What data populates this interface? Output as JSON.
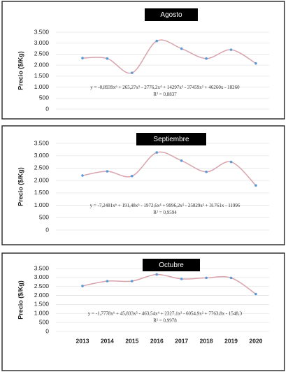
{
  "chart_data": [
    {
      "type": "scatter",
      "title": "Agosto",
      "y_label": "Precio ($/Kg)",
      "categories": [
        null,
        null,
        null,
        null,
        null,
        null,
        null,
        null
      ],
      "series": [
        {
          "color": "#5b9bd5",
          "values": [
            2320,
            2300,
            1650,
            3100,
            2750,
            2300,
            2700,
            2080
          ]
        }
      ],
      "trendline_color": "#d9a3ad",
      "annotations": [
        "y = -0,8939x⁶ + 265,27x⁵ - 2776,2x⁴ + 14297x³ - 37459x² + 46260x - 18260",
        "R² = 0,8837"
      ],
      "ylim": [
        0,
        3500
      ],
      "yticks": [
        0,
        500,
        {
          "value": 1000,
          "label": "1.000"
        },
        {
          "value": 1500,
          "label": "1.500"
        },
        {
          "value": 2000,
          "label": "2.000"
        },
        {
          "value": 2500,
          "label": "2.500"
        },
        {
          "value": 3000,
          "label": "3.000"
        },
        {
          "value": 3500,
          "label": "3.500"
        }
      ],
      "grid": true
    },
    {
      "type": "scatter",
      "title": "Septiembre",
      "y_label": "Precio ($/Kg)",
      "categories": [
        null,
        null,
        null,
        null,
        null,
        null,
        null,
        null
      ],
      "series": [
        {
          "color": "#5b9bd5",
          "values": [
            2200,
            2370,
            2180,
            3130,
            2800,
            2350,
            2750,
            1800
          ]
        }
      ],
      "trendline_color": "#d9a3ad",
      "annotations": [
        "y = -7,2481x⁶ + 191,48x⁵ - 1972,6x⁴ + 9996,2x³ - 25829x² + 31761x - 11996",
        "R² = 0,9594"
      ],
      "ylim": [
        0,
        3500
      ],
      "yticks": [
        0,
        500,
        {
          "value": 1000,
          "label": "1.000"
        },
        {
          "value": 1500,
          "label": "1.500"
        },
        {
          "value": 2000,
          "label": "2.000"
        },
        {
          "value": 2500,
          "label": "2.500"
        },
        {
          "value": 3000,
          "label": "3.000"
        },
        {
          "value": 3500,
          "label": "3.500"
        }
      ],
      "grid": true
    },
    {
      "type": "scatter",
      "title": "Octubre",
      "y_label": "Precio ($/Kg)",
      "categories": [
        "2013",
        "2014",
        "2015",
        "2016",
        "2017",
        "2018",
        "2019",
        "2020"
      ],
      "series": [
        {
          "color": "#5b9bd5",
          "values": [
            2530,
            2800,
            2800,
            3170,
            2920,
            2980,
            2980,
            2080
          ]
        }
      ],
      "trendline_color": "#d9a3ad",
      "annotations": [
        "y = -1,7778x⁶ + 45,833x⁵ - 463,54x⁴ + 2327,1x³ - 6054,9x² + 7763,8x - 1548,3",
        "R² = 0,9978"
      ],
      "ylim": [
        0,
        3500
      ],
      "yticks": [
        0,
        500,
        {
          "value": 1000,
          "label": "1.000"
        },
        {
          "value": 1500,
          "label": "1.500"
        },
        {
          "value": 2000,
          "label": "2.000"
        },
        {
          "value": 2500,
          "label": "2.500"
        },
        {
          "value": 3000,
          "label": "3.000"
        },
        {
          "value": 3500,
          "label": "3.500"
        }
      ],
      "grid": true
    }
  ]
}
